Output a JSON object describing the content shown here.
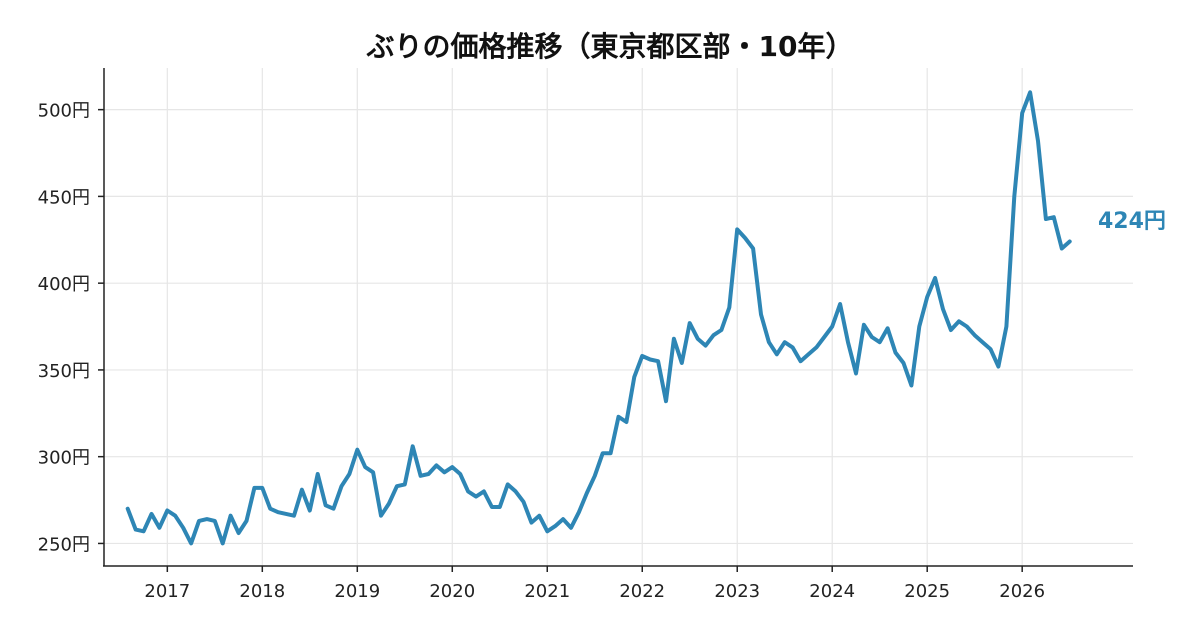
{
  "chart_data": {
    "type": "line",
    "title": "ぶりの価格推移（東京都区部・10年）",
    "xlabel": "",
    "ylabel": "",
    "x_ticks": [
      "2017",
      "2018",
      "2019",
      "2020",
      "2021",
      "2022",
      "2023",
      "2024",
      "2025",
      "2026"
    ],
    "y_ticks": [
      "250円",
      "300円",
      "350円",
      "400円",
      "450円",
      "500円"
    ],
    "y_tick_values": [
      250,
      300,
      350,
      400,
      450,
      500
    ],
    "xlim": [
      "2016-05",
      "2027-03"
    ],
    "ylim": [
      237,
      524
    ],
    "grid": true,
    "end_label": "424円",
    "line_color": "#2e86b5",
    "series": [
      {
        "x": [
          "2016-08",
          "2016-09",
          "2016-10",
          "2016-11",
          "2016-12",
          "2017-01",
          "2017-02",
          "2017-03",
          "2017-04",
          "2017-05",
          "2017-06",
          "2017-07",
          "2017-08",
          "2017-09",
          "2017-10",
          "2017-11",
          "2017-12",
          "2018-01",
          "2018-02",
          "2018-03",
          "2018-04",
          "2018-05",
          "2018-06",
          "2018-07",
          "2018-08",
          "2018-09",
          "2018-10",
          "2018-11",
          "2018-12",
          "2019-01",
          "2019-02",
          "2019-03",
          "2019-04",
          "2019-05",
          "2019-06",
          "2019-07",
          "2019-08",
          "2019-09",
          "2019-10",
          "2019-11",
          "2019-12",
          "2020-01",
          "2020-02",
          "2020-03",
          "2020-04",
          "2020-05",
          "2020-06",
          "2020-07",
          "2020-08",
          "2020-09",
          "2020-10",
          "2020-11",
          "2020-12",
          "2021-01",
          "2021-02",
          "2021-03",
          "2021-04",
          "2021-05",
          "2021-06",
          "2021-07",
          "2021-08",
          "2021-09",
          "2021-10",
          "2021-11",
          "2021-12",
          "2022-01",
          "2022-02",
          "2022-03",
          "2022-04",
          "2022-05",
          "2022-06",
          "2022-07",
          "2022-08",
          "2022-09",
          "2022-10",
          "2022-11",
          "2022-12",
          "2023-01",
          "2023-02",
          "2023-03",
          "2023-04",
          "2023-05",
          "2023-06",
          "2023-07",
          "2023-08",
          "2023-09",
          "2023-10",
          "2023-11",
          "2023-12",
          "2024-01",
          "2024-02",
          "2024-03",
          "2024-04",
          "2024-05",
          "2024-06",
          "2024-07",
          "2024-08",
          "2024-09",
          "2024-10",
          "2024-11",
          "2024-12",
          "2025-01",
          "2025-02",
          "2025-03",
          "2025-04",
          "2025-05",
          "2025-06",
          "2025-07",
          "2025-08",
          "2025-09",
          "2025-10",
          "2025-11",
          "2025-12",
          "2026-01",
          "2026-02",
          "2026-03",
          "2026-04",
          "2026-05",
          "2026-06",
          "2026-07"
        ],
        "values": [
          270,
          258,
          257,
          267,
          259,
          269,
          266,
          259,
          250,
          263,
          264,
          263,
          250,
          266,
          256,
          263,
          282,
          282,
          270,
          268,
          267,
          266,
          281,
          269,
          290,
          272,
          270,
          283,
          290,
          304,
          294,
          291,
          266,
          273,
          283,
          284,
          306,
          289,
          290,
          295,
          291,
          294,
          290,
          280,
          277,
          280,
          271,
          271,
          284,
          280,
          274,
          262,
          266,
          257,
          260,
          264,
          259,
          268,
          279,
          289,
          302,
          302,
          323,
          320,
          346,
          358,
          356,
          355,
          332,
          368,
          354,
          377,
          368,
          364,
          370,
          373,
          386,
          431,
          426,
          420,
          382,
          366,
          359,
          366,
          363,
          355,
          359,
          363,
          369,
          375,
          388,
          366,
          348,
          376,
          369,
          366,
          374,
          360,
          354,
          341,
          375,
          392,
          403,
          385,
          373,
          378,
          375,
          370,
          366,
          362,
          352,
          375,
          450,
          498,
          510,
          482,
          437,
          438,
          420,
          424
        ]
      }
    ]
  }
}
